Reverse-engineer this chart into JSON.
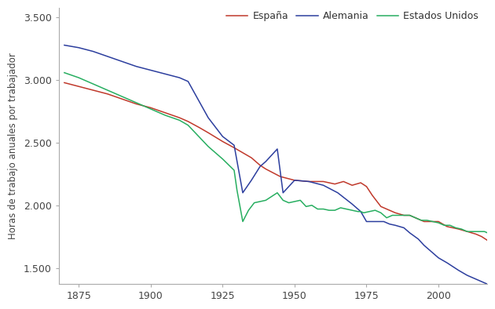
{
  "ylabel": "Horas de trabajo anuales por trabajador",
  "xlim": [
    1868,
    2017
  ],
  "ylim": [
    1370,
    3580
  ],
  "yticks": [
    1500,
    2000,
    2500,
    3000,
    3500
  ],
  "ytick_labels": [
    "1.500",
    "2.000",
    "2.500",
    "3.000",
    "3.500"
  ],
  "xticks": [
    1875,
    1900,
    1925,
    1950,
    1975,
    2000
  ],
  "legend_entries": [
    "España",
    "Alemania",
    "Estados Unidos"
  ],
  "line_colors": [
    "#c0392b",
    "#2c3e9e",
    "#27ae60"
  ],
  "espana": {
    "years": [
      1870,
      1875,
      1880,
      1885,
      1890,
      1895,
      1900,
      1905,
      1910,
      1913,
      1917,
      1920,
      1925,
      1929,
      1932,
      1935,
      1938,
      1940,
      1945,
      1950,
      1955,
      1960,
      1964,
      1967,
      1970,
      1973,
      1975,
      1977,
      1980,
      1982,
      1985,
      1988,
      1990,
      1993,
      1995,
      1998,
      2000,
      2003,
      2005,
      2007,
      2010,
      2013,
      2015,
      2017
    ],
    "hours": [
      2980,
      2950,
      2920,
      2890,
      2850,
      2810,
      2780,
      2740,
      2700,
      2670,
      2620,
      2580,
      2510,
      2460,
      2420,
      2380,
      2320,
      2290,
      2230,
      2200,
      2190,
      2190,
      2170,
      2190,
      2160,
      2180,
      2150,
      2080,
      1990,
      1970,
      1940,
      1920,
      1920,
      1890,
      1870,
      1870,
      1870,
      1830,
      1820,
      1810,
      1790,
      1770,
      1750,
      1720
    ]
  },
  "alemania": {
    "years": [
      1870,
      1875,
      1880,
      1885,
      1890,
      1895,
      1900,
      1905,
      1910,
      1913,
      1920,
      1925,
      1929,
      1932,
      1935,
      1938,
      1940,
      1944,
      1946,
      1950,
      1955,
      1960,
      1965,
      1970,
      1973,
      1975,
      1977,
      1979,
      1981,
      1983,
      1985,
      1988,
      1990,
      1993,
      1995,
      1998,
      2000,
      2003,
      2005,
      2007,
      2010,
      2013,
      2015,
      2017
    ],
    "hours": [
      3280,
      3260,
      3230,
      3190,
      3150,
      3110,
      3080,
      3050,
      3020,
      2990,
      2700,
      2550,
      2480,
      2100,
      2200,
      2310,
      2350,
      2450,
      2100,
      2200,
      2190,
      2160,
      2100,
      2010,
      1950,
      1870,
      1870,
      1870,
      1870,
      1850,
      1840,
      1820,
      1780,
      1730,
      1680,
      1620,
      1580,
      1540,
      1510,
      1480,
      1440,
      1410,
      1390,
      1370
    ]
  },
  "usa": {
    "years": [
      1870,
      1875,
      1880,
      1885,
      1890,
      1895,
      1900,
      1905,
      1910,
      1913,
      1920,
      1925,
      1929,
      1930,
      1932,
      1934,
      1936,
      1938,
      1940,
      1942,
      1944,
      1946,
      1948,
      1950,
      1952,
      1954,
      1956,
      1958,
      1960,
      1962,
      1964,
      1966,
      1968,
      1970,
      1972,
      1973,
      1974,
      1976,
      1978,
      1980,
      1982,
      1984,
      1986,
      1988,
      1990,
      1992,
      1994,
      1996,
      1998,
      2000,
      2002,
      2004,
      2006,
      2008,
      2010,
      2012,
      2014,
      2016,
      2017
    ],
    "hours": [
      3060,
      3020,
      2970,
      2920,
      2870,
      2820,
      2770,
      2720,
      2680,
      2640,
      2470,
      2370,
      2280,
      2120,
      1870,
      1960,
      2020,
      2030,
      2040,
      2070,
      2100,
      2040,
      2020,
      2030,
      2040,
      1990,
      2000,
      1970,
      1970,
      1960,
      1960,
      1980,
      1970,
      1960,
      1950,
      1950,
      1940,
      1950,
      1960,
      1940,
      1900,
      1920,
      1920,
      1920,
      1920,
      1900,
      1880,
      1880,
      1870,
      1860,
      1840,
      1840,
      1820,
      1810,
      1790,
      1790,
      1790,
      1790,
      1780
    ]
  },
  "background_color": "#ffffff",
  "line_width": 1.1
}
